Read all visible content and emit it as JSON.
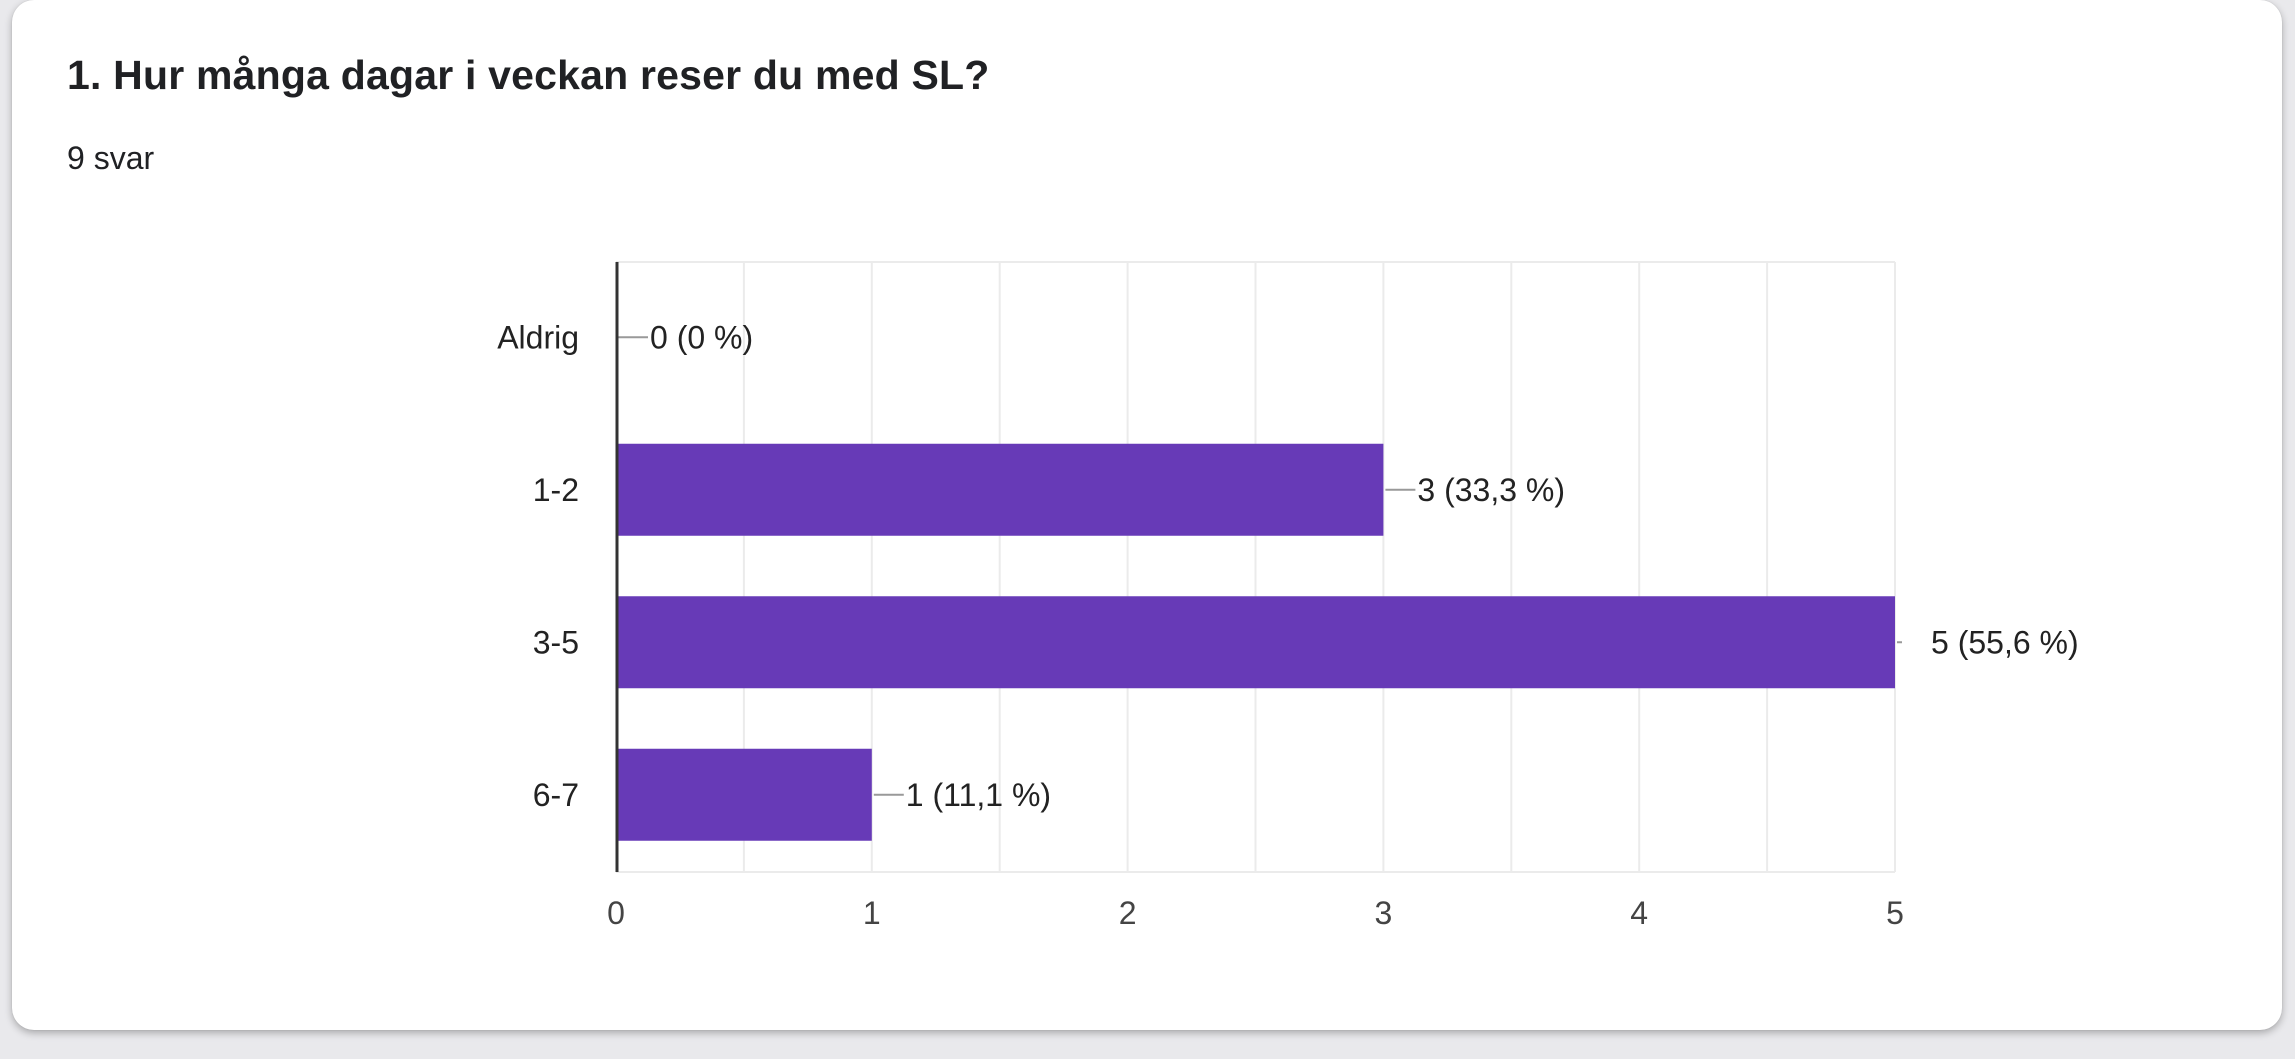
{
  "question": {
    "title": "1. Hur många dagar i veckan reser du med SL?",
    "responses": "9 svar"
  },
  "colors": {
    "bar": "#673ab7",
    "grid": "#ebebeb",
    "axis": "#333333",
    "text": "#222222",
    "leader": "#999999"
  },
  "chart_data": {
    "type": "bar",
    "orientation": "horizontal",
    "title": "",
    "xlabel": "",
    "ylabel": "",
    "categories": [
      "Aldrig",
      "1-2",
      "3-5",
      "6-7"
    ],
    "values": [
      0,
      3,
      5,
      1
    ],
    "data_labels": [
      "0 (0 %)",
      "3 (33,3 %)",
      "5 (55,6 %)",
      "1 (11,1 %)"
    ],
    "xlim": [
      0,
      5
    ],
    "x_ticks": [
      "0",
      "1",
      "2",
      "3",
      "4",
      "5"
    ],
    "grid": true,
    "legend": "none"
  }
}
